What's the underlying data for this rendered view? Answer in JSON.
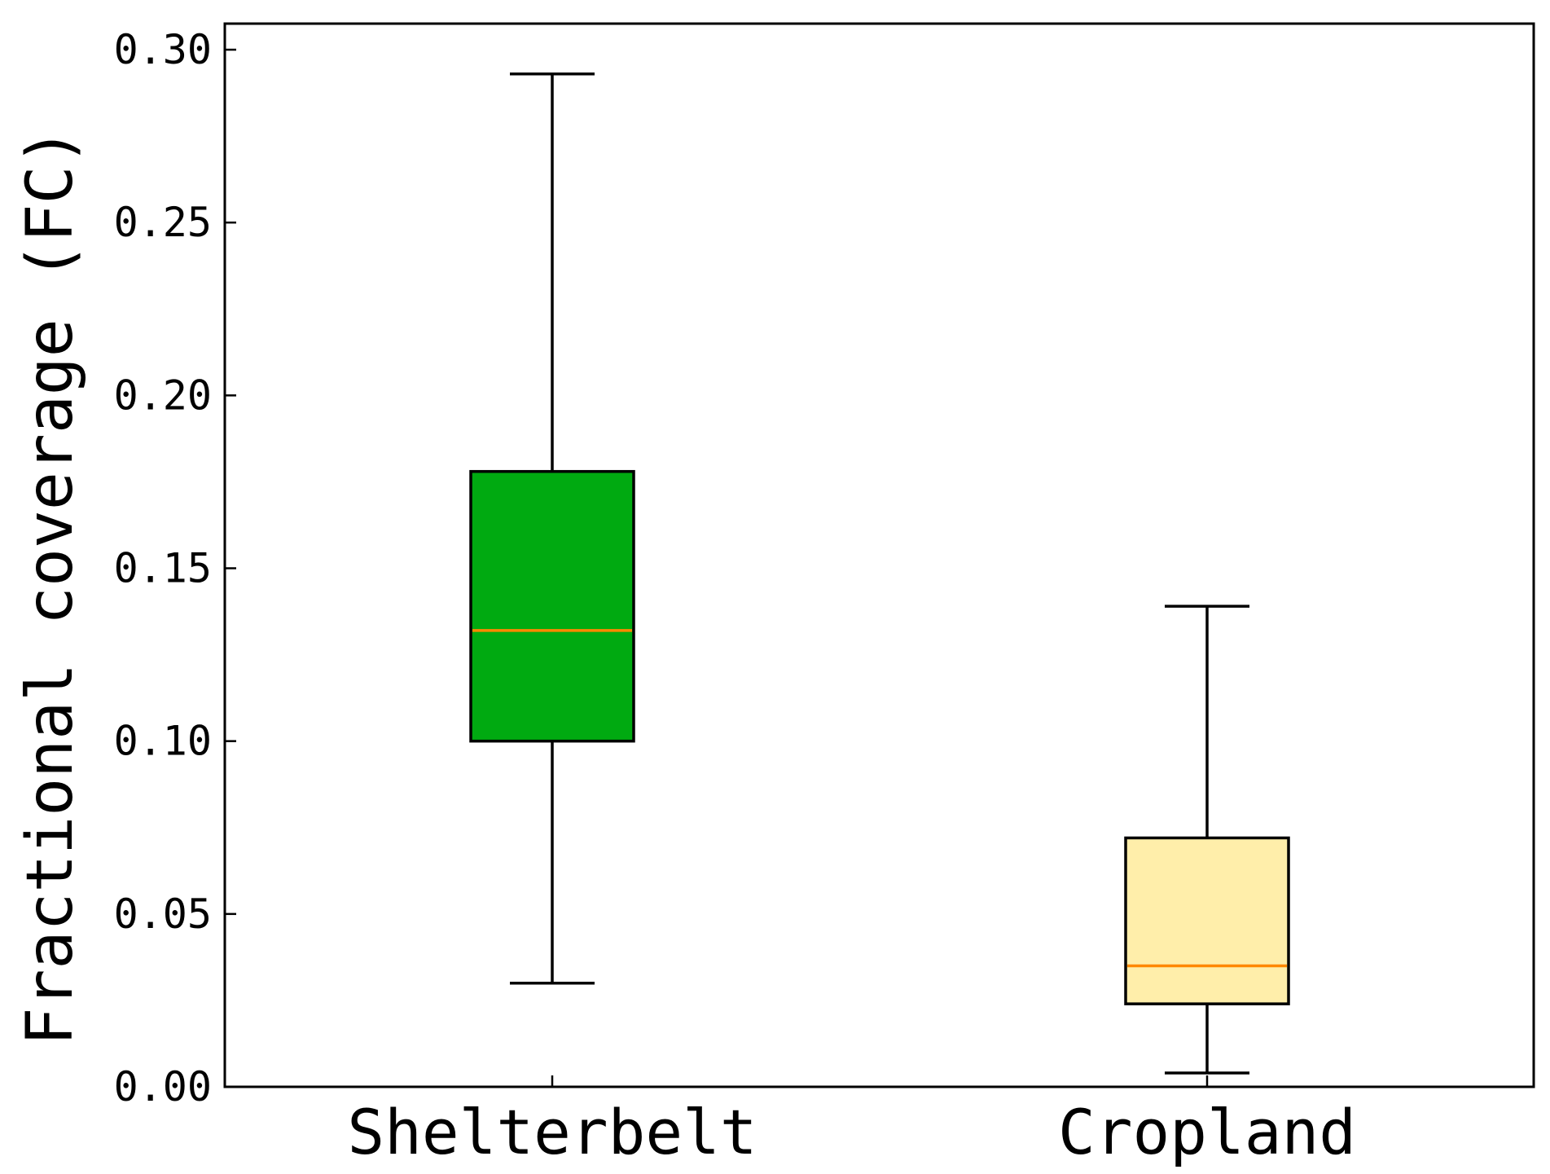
{
  "chart_data": {
    "type": "boxplot",
    "categories": [
      "Shelterbelt",
      "Cropland"
    ],
    "series": [
      {
        "category": "Shelterbelt",
        "whisker_low": 0.03,
        "q1": 0.1,
        "median": 0.132,
        "q3": 0.178,
        "whisker_high": 0.293,
        "fill": "#00aa11"
      },
      {
        "category": "Cropland",
        "whisker_low": 0.004,
        "q1": 0.024,
        "median": 0.035,
        "q3": 0.072,
        "whisker_high": 0.139,
        "fill": "#ffeeaa"
      }
    ],
    "ylabel": "Fractional coverage (FC)",
    "xlabel": "",
    "ylim": [
      0.0,
      0.3
    ],
    "yticks": [
      "0.00",
      "0.05",
      "0.10",
      "0.15",
      "0.20",
      "0.25",
      "0.30"
    ],
    "median_color": "#ff8800",
    "grid": false,
    "legend": "none"
  }
}
